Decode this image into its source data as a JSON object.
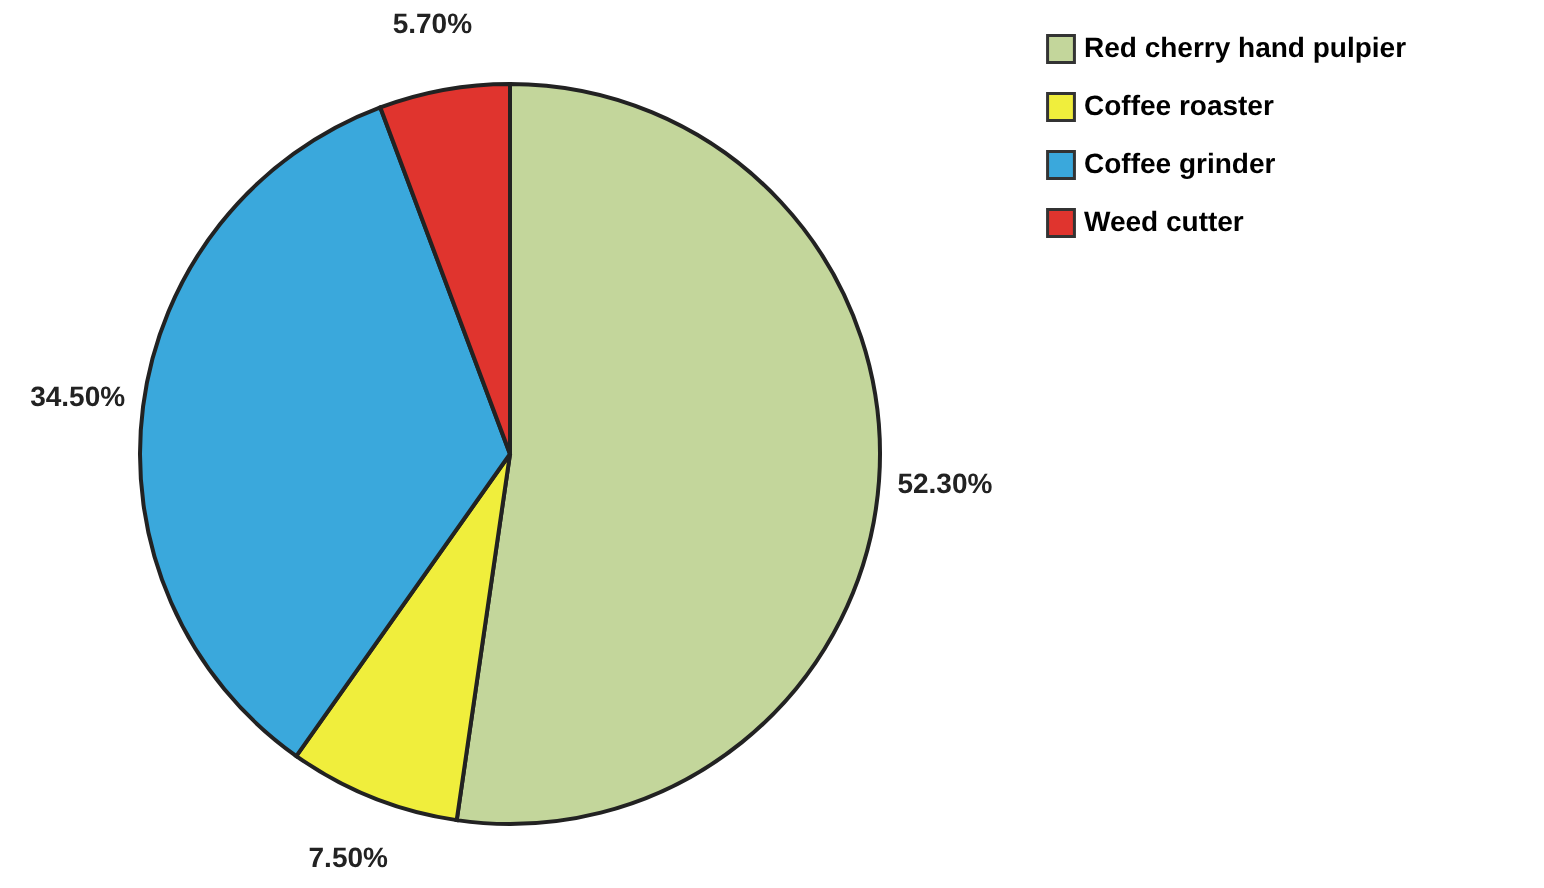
{
  "chart_data": {
    "type": "pie",
    "categories": [
      "Red cherry hand pulpier",
      "Coffee roaster",
      "Coffee grinder",
      "Weed cutter"
    ],
    "values": [
      52.3,
      7.5,
      34.5,
      5.7
    ],
    "colors": [
      "#c3d69b",
      "#f0ee3c",
      "#3aa8dc",
      "#e0342e"
    ],
    "value_labels": [
      "52.30%",
      "7.50%",
      "34.50%",
      "5.70%"
    ],
    "legend": "right"
  }
}
